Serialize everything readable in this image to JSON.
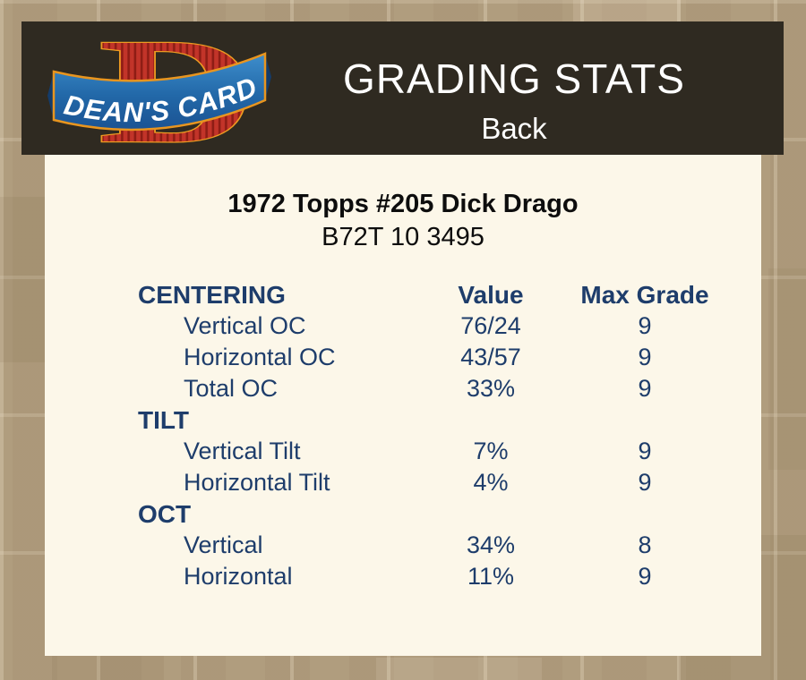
{
  "colors": {
    "page_bg": "#b09d7e",
    "header_bg": "#2f2a21",
    "card_bg": "#fcf7e9",
    "navy": "#1e3d6b",
    "title_text": "#0d0d0d",
    "header_text": "#ffffff",
    "logo_red": "#c23429",
    "logo_red_dark": "#8e1d15",
    "logo_gold": "#ed9b21",
    "logo_blue": "#3e8ecc",
    "logo_blue_dark": "#1b5393",
    "logo_text_color": "#ffffff"
  },
  "header": {
    "title": "GRADING STATS",
    "side_label": "Back",
    "logo_letter": "D",
    "logo_text": "DEAN'S CARDS"
  },
  "card": {
    "title": "1972 Topps #205 Dick Drago",
    "code": "B72T 10 3495"
  },
  "table": {
    "value_header": "Value",
    "max_grade_header": "Max Grade",
    "sections": [
      {
        "label": "CENTERING",
        "rows": [
          {
            "label": "Vertical OC",
            "value": "76/24",
            "max_grade": "9"
          },
          {
            "label": "Horizontal OC",
            "value": "43/57",
            "max_grade": "9"
          },
          {
            "label": "Total OC",
            "value": "33%",
            "max_grade": "9"
          }
        ]
      },
      {
        "label": "TILT",
        "rows": [
          {
            "label": "Vertical Tilt",
            "value": "7%",
            "max_grade": "9"
          },
          {
            "label": "Horizontal Tilt",
            "value": "4%",
            "max_grade": "9"
          }
        ]
      },
      {
        "label": "OCT",
        "rows": [
          {
            "label": "Vertical",
            "value": "34%",
            "max_grade": "8"
          },
          {
            "label": "Horizontal",
            "value": "11%",
            "max_grade": "9"
          }
        ]
      }
    ]
  }
}
